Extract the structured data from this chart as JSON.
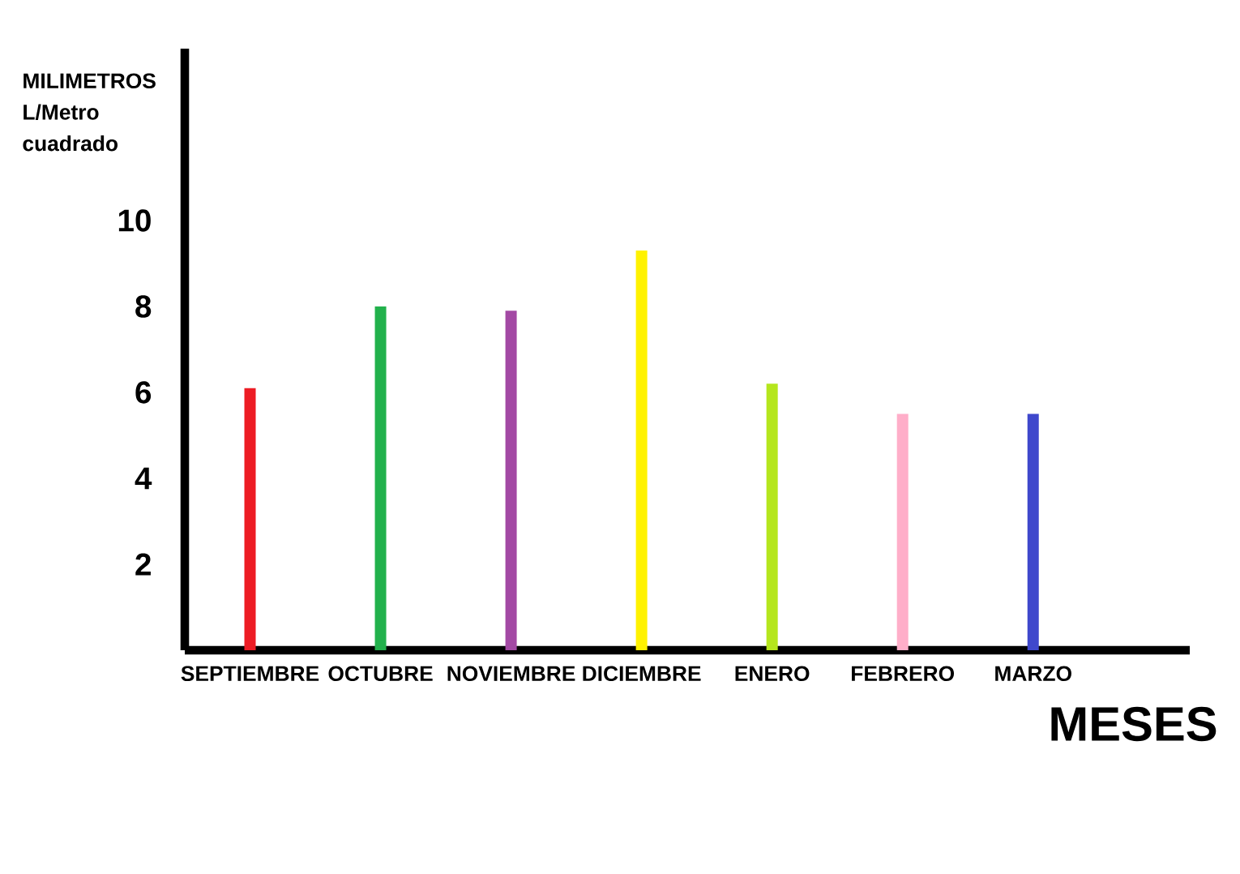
{
  "chart_data": {
    "type": "bar",
    "xlabel": "MESES",
    "ylabel": "MILIMETROS L/Metro cuadrado",
    "categories": [
      "SEPTIEMBRE",
      "OCTUBRE",
      "NOVIEMBRE",
      "DICIEMBRE",
      "ENERO",
      "FEBRERO",
      "MARZO"
    ],
    "values": [
      6.1,
      8.0,
      7.9,
      9.3,
      6.2,
      5.5,
      5.5
    ],
    "colors": [
      "#ed1c24",
      "#22b14c",
      "#a349a4",
      "#fff200",
      "#b5e61d",
      "#ffaec9",
      "#3f48cc"
    ],
    "ylim": [
      0,
      14
    ],
    "yticks": [
      2,
      4,
      6,
      8,
      10
    ]
  }
}
